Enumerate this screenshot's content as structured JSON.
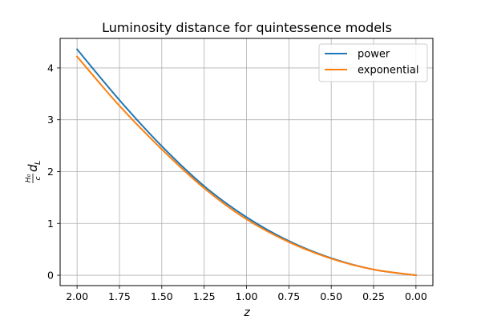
{
  "chart_data": {
    "type": "line",
    "title": "Luminosity distance for quintessence models",
    "xlabel": "z",
    "ylabel_main": "d",
    "ylabel_sub": "L",
    "ylabel_frac_num": "H₀",
    "ylabel_frac_den": "c",
    "xlim": [
      2.1,
      -0.1
    ],
    "ylim": [
      -0.2,
      4.57
    ],
    "x_inverted": true,
    "grid": true,
    "legend_position": "top-right",
    "x_ticks": [
      2.0,
      1.75,
      1.5,
      1.25,
      1.0,
      0.75,
      0.5,
      0.25,
      0.0
    ],
    "x_tick_labels": [
      "2.00",
      "1.75",
      "1.50",
      "1.25",
      "1.00",
      "0.75",
      "0.50",
      "0.25",
      "0.00"
    ],
    "y_ticks": [
      0,
      1,
      2,
      3,
      4
    ],
    "y_tick_labels": [
      "0",
      "1",
      "2",
      "3",
      "4"
    ],
    "series": [
      {
        "name": "power",
        "color": "#1f77b4",
        "x": [
          2.0,
          1.75,
          1.5,
          1.25,
          1.0,
          0.75,
          0.5,
          0.25,
          0.0
        ],
        "y": [
          4.36,
          3.38,
          2.49,
          1.72,
          1.12,
          0.66,
          0.33,
          0.11,
          0.0
        ]
      },
      {
        "name": "exponential",
        "color": "#ff7f0e",
        "x": [
          2.0,
          1.75,
          1.5,
          1.25,
          1.0,
          0.75,
          0.5,
          0.25,
          0.0
        ],
        "y": [
          4.22,
          3.27,
          2.43,
          1.68,
          1.08,
          0.64,
          0.32,
          0.11,
          0.0
        ]
      }
    ]
  }
}
